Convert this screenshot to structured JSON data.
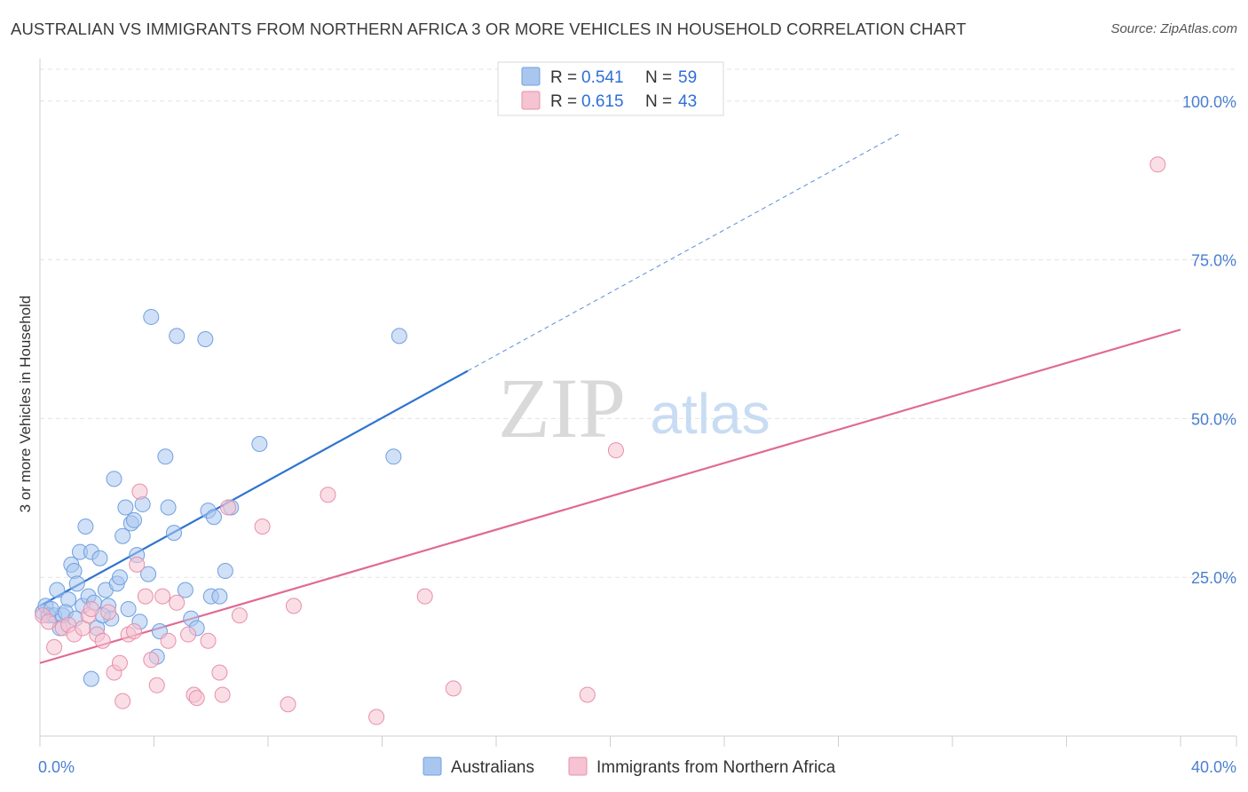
{
  "header": {
    "title": "AUSTRALIAN VS IMMIGRANTS FROM NORTHERN AFRICA 3 OR MORE VEHICLES IN HOUSEHOLD CORRELATION CHART",
    "source": "Source: ZipAtlas.com"
  },
  "watermark": {
    "zip": "ZIP",
    "atlas": "atlas"
  },
  "chart_data": {
    "type": "scatter",
    "title": "AUSTRALIAN VS IMMIGRANTS FROM NORTHERN AFRICA 3 OR MORE VEHICLES IN HOUSEHOLD CORRELATION CHART",
    "xlabel": "",
    "ylabel": "3 or more Vehicles in Household",
    "xlim": [
      0,
      40
    ],
    "ylim": [
      0,
      105
    ],
    "x_ticks": [
      0,
      4,
      8,
      12,
      16,
      20,
      24,
      28,
      32,
      36,
      40
    ],
    "x_tick_labels": {
      "left": "0.0%",
      "right": "40.0%"
    },
    "y_ticks": [
      25,
      50,
      75,
      100
    ],
    "y_tick_labels": [
      "25.0%",
      "50.0%",
      "75.0%",
      "100.0%"
    ],
    "grid": true,
    "legend_position": "top-center",
    "legend": [
      {
        "r_label": "R =",
        "r_value": "0.541",
        "n_label": "N =",
        "n_value": "59"
      },
      {
        "r_label": "R =",
        "r_value": "0.615",
        "n_label": "N =",
        "n_value": "43"
      }
    ],
    "series": [
      {
        "name": "Australians",
        "color": "#6fa0e0",
        "fill": "#a9c6ef",
        "line_color": "#2f73d0",
        "trend": {
          "x0": 0,
          "y0": 20.5,
          "x1": 15,
          "y1": 57.5,
          "extend_to_x": 30.2,
          "extend_to_y": 95
        },
        "points": [
          [
            0.1,
            19.5
          ],
          [
            0.2,
            20.5
          ],
          [
            0.3,
            19
          ],
          [
            0.5,
            19
          ],
          [
            0.6,
            23
          ],
          [
            0.7,
            17
          ],
          [
            0.8,
            19
          ],
          [
            1.0,
            21.5
          ],
          [
            1.1,
            27
          ],
          [
            1.2,
            26
          ],
          [
            1.3,
            24
          ],
          [
            1.4,
            29
          ],
          [
            1.5,
            20.5
          ],
          [
            1.6,
            33
          ],
          [
            1.7,
            22
          ],
          [
            1.8,
            29
          ],
          [
            1.9,
            21
          ],
          [
            2.0,
            17
          ],
          [
            2.1,
            28
          ],
          [
            2.3,
            23
          ],
          [
            2.4,
            20.5
          ],
          [
            2.5,
            18.5
          ],
          [
            2.6,
            40.5
          ],
          [
            2.7,
            24
          ],
          [
            2.8,
            25
          ],
          [
            2.9,
            31.5
          ],
          [
            3.0,
            36
          ],
          [
            3.1,
            20
          ],
          [
            3.2,
            33.5
          ],
          [
            3.3,
            34
          ],
          [
            3.4,
            28.5
          ],
          [
            3.5,
            18
          ],
          [
            3.6,
            36.5
          ],
          [
            3.8,
            25.5
          ],
          [
            3.9,
            66
          ],
          [
            4.1,
            12.5
          ],
          [
            4.2,
            16.5
          ],
          [
            4.4,
            44
          ],
          [
            4.5,
            36
          ],
          [
            4.7,
            32
          ],
          [
            4.8,
            63
          ],
          [
            5.1,
            23
          ],
          [
            5.3,
            18.5
          ],
          [
            5.5,
            17
          ],
          [
            5.8,
            62.5
          ],
          [
            5.9,
            35.5
          ],
          [
            6.0,
            22
          ],
          [
            6.1,
            34.5
          ],
          [
            6.3,
            22
          ],
          [
            6.5,
            26
          ],
          [
            6.7,
            36
          ],
          [
            7.7,
            46
          ],
          [
            12.4,
            44
          ],
          [
            12.6,
            63
          ],
          [
            1.8,
            9
          ],
          [
            2.2,
            19
          ],
          [
            0.4,
            20
          ],
          [
            0.9,
            19.5
          ],
          [
            1.25,
            18.5
          ]
        ]
      },
      {
        "name": "Immigrants from Northern Africa",
        "color": "#e88fab",
        "fill": "#f5c3d2",
        "line_color": "#e06a94",
        "trend": {
          "x0": 0,
          "y0": 11.5,
          "x1": 40,
          "y1": 64
        },
        "points": [
          [
            0.1,
            19
          ],
          [
            0.3,
            18
          ],
          [
            0.5,
            14
          ],
          [
            0.8,
            17
          ],
          [
            1.0,
            17.5
          ],
          [
            1.2,
            16
          ],
          [
            1.5,
            17
          ],
          [
            1.7,
            19
          ],
          [
            1.8,
            20
          ],
          [
            2.0,
            16
          ],
          [
            2.2,
            15
          ],
          [
            2.4,
            19.5
          ],
          [
            2.6,
            10
          ],
          [
            2.8,
            11.5
          ],
          [
            2.9,
            5.5
          ],
          [
            3.1,
            16
          ],
          [
            3.3,
            16.5
          ],
          [
            3.4,
            27
          ],
          [
            3.5,
            38.5
          ],
          [
            3.7,
            22
          ],
          [
            3.9,
            12
          ],
          [
            4.1,
            8
          ],
          [
            4.3,
            22
          ],
          [
            4.5,
            15
          ],
          [
            4.8,
            21
          ],
          [
            5.2,
            16
          ],
          [
            5.4,
            6.5
          ],
          [
            5.5,
            6
          ],
          [
            5.9,
            15
          ],
          [
            6.3,
            10
          ],
          [
            6.4,
            6.5
          ],
          [
            6.6,
            36
          ],
          [
            7.0,
            19
          ],
          [
            7.8,
            33
          ],
          [
            8.7,
            5
          ],
          [
            8.9,
            20.5
          ],
          [
            10.1,
            38
          ],
          [
            11.8,
            3
          ],
          [
            13.5,
            22
          ],
          [
            14.5,
            7.5
          ],
          [
            19.2,
            6.5
          ],
          [
            20.2,
            45
          ],
          [
            39.2,
            90
          ]
        ]
      }
    ]
  },
  "bottom_legend": {
    "australians": "Australians",
    "immigrants": "Immigrants from Northern Africa"
  }
}
